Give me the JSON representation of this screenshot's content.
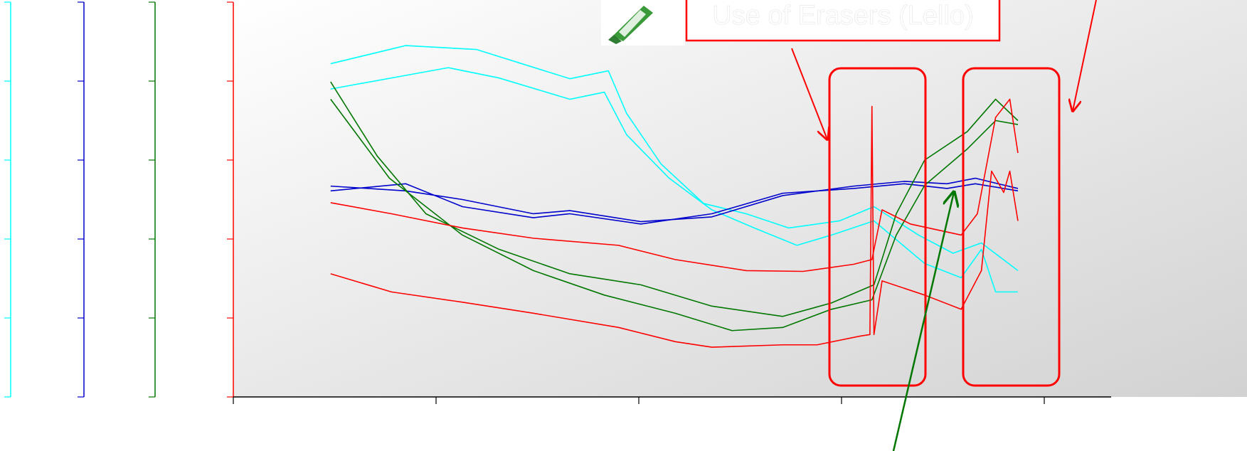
{
  "chart_data": {
    "type": "line",
    "annotation": "Use of Erasers (Lello)",
    "xlim": [
      0,
      4.33
    ],
    "xticks": [
      0,
      1,
      2,
      3,
      4
    ],
    "ylim": [
      0,
      5
    ],
    "grid": false,
    "y_axes": [
      {
        "color": "#00ffff",
        "ylim": [
          0,
          5
        ],
        "yticks": [
          0,
          1,
          2,
          3,
          4,
          5
        ]
      },
      {
        "color": "#0000cc",
        "ylim": [
          0,
          5
        ],
        "yticks": [
          0,
          1,
          2,
          3,
          4,
          5
        ]
      },
      {
        "color": "#007700",
        "ylim": [
          0,
          5
        ],
        "yticks": [
          0,
          1,
          2,
          3,
          4,
          5
        ]
      },
      {
        "color": "#ff0000",
        "ylim": [
          0,
          5
        ],
        "yticks": [
          0,
          1,
          2,
          3,
          4,
          5
        ]
      }
    ],
    "series": [
      {
        "color": "#00ffff",
        "x": [
          0.48,
          0.85,
          1.2,
          1.66,
          1.85,
          1.94,
          2.11,
          2.32,
          2.53,
          2.74,
          2.99,
          3.16,
          3.38,
          3.55,
          3.69,
          3.87
        ],
        "values": [
          4.22,
          4.45,
          4.4,
          4.03,
          4.13,
          3.59,
          2.95,
          2.45,
          2.32,
          2.14,
          2.23,
          2.41,
          2.05,
          1.82,
          1.95,
          1.6
        ]
      },
      {
        "color": "#00ffff",
        "x": [
          0.48,
          1.06,
          1.31,
          1.66,
          1.83,
          1.94,
          2.15,
          2.36,
          2.57,
          2.78,
          2.95,
          3.16,
          3.41,
          3.59,
          3.69,
          3.76,
          3.87
        ],
        "values": [
          3.9,
          4.17,
          4.04,
          3.77,
          3.86,
          3.32,
          2.77,
          2.37,
          2.14,
          1.92,
          2.05,
          2.23,
          1.69,
          1.51,
          1.87,
          1.33,
          1.33
        ]
      },
      {
        "color": "#0000cc",
        "x": [
          0.48,
          0.85,
          1.13,
          1.48,
          1.66,
          2.01,
          2.36,
          2.71,
          3.06,
          3.31,
          3.52,
          3.66,
          3.87
        ],
        "values": [
          2.67,
          2.61,
          2.5,
          2.32,
          2.36,
          2.22,
          2.28,
          2.55,
          2.67,
          2.73,
          2.7,
          2.77,
          2.64
        ]
      },
      {
        "color": "#0000cc",
        "x": [
          0.48,
          0.85,
          1.13,
          1.48,
          1.66,
          2.01,
          2.36,
          2.71,
          3.06,
          3.31,
          3.52,
          3.66,
          3.87
        ],
        "values": [
          2.61,
          2.7,
          2.41,
          2.27,
          2.32,
          2.19,
          2.32,
          2.58,
          2.64,
          2.7,
          2.64,
          2.7,
          2.61
        ]
      },
      {
        "color": "#007700",
        "x": [
          0.48,
          0.71,
          0.95,
          1.31,
          1.66,
          2.01,
          2.36,
          2.71,
          2.95,
          3.16,
          3.27,
          3.41,
          3.62,
          3.76,
          3.87
        ],
        "values": [
          3.99,
          3.05,
          2.32,
          1.87,
          1.56,
          1.42,
          1.15,
          1.02,
          1.19,
          1.42,
          2.32,
          3.0,
          3.36,
          3.77,
          3.5
        ]
      },
      {
        "color": "#007700",
        "x": [
          0.48,
          0.77,
          1.13,
          1.48,
          1.83,
          2.18,
          2.46,
          2.71,
          2.95,
          3.15,
          3.27,
          3.41,
          3.62,
          3.76,
          3.87
        ],
        "values": [
          3.77,
          2.77,
          2.05,
          1.6,
          1.29,
          1.06,
          0.84,
          0.88,
          1.11,
          1.23,
          2.05,
          2.68,
          3.14,
          3.5,
          3.45
        ]
      },
      {
        "color": "#ff0000",
        "x": [
          0.48,
          0.78,
          1.13,
          1.48,
          1.9,
          2.18,
          2.53,
          2.81,
          3.06,
          3.15,
          3.2,
          3.34,
          3.59,
          3.67,
          3.76,
          3.83,
          3.87
        ],
        "values": [
          2.46,
          2.32,
          2.14,
          2.01,
          1.92,
          1.74,
          1.6,
          1.59,
          1.68,
          1.74,
          2.37,
          2.19,
          2.05,
          2.32,
          3.54,
          3.77,
          3.09
        ]
      },
      {
        "color": "#ff0000",
        "x": [
          0.48,
          0.78,
          1.13,
          1.48,
          1.9,
          2.18,
          2.36,
          2.71,
          2.88,
          3.09,
          3.14,
          3.15,
          3.16,
          3.2,
          3.41,
          3.59,
          3.69,
          3.74,
          3.8,
          3.83,
          3.87
        ],
        "values": [
          1.56,
          1.33,
          1.2,
          1.06,
          0.88,
          0.7,
          0.63,
          0.66,
          0.66,
          0.77,
          0.79,
          3.68,
          0.79,
          1.47,
          1.29,
          1.11,
          1.6,
          2.86,
          2.59,
          2.86,
          2.23
        ]
      }
    ]
  }
}
